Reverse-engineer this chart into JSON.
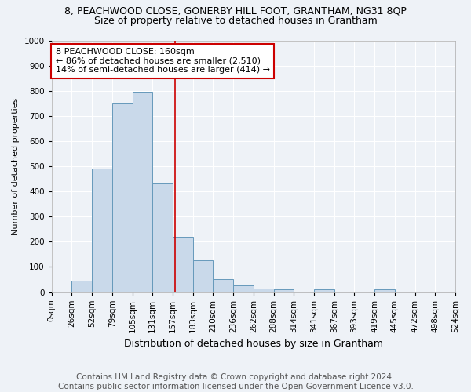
{
  "title1": "8, PEACHWOOD CLOSE, GONERBY HILL FOOT, GRANTHAM, NG31 8QP",
  "title2": "Size of property relative to detached houses in Grantham",
  "xlabel": "Distribution of detached houses by size in Grantham",
  "ylabel": "Number of detached properties",
  "footer1": "Contains HM Land Registry data © Crown copyright and database right 2024.",
  "footer2": "Contains public sector information licensed under the Open Government Licence v3.0.",
  "bin_labels": [
    "0sqm",
    "26sqm",
    "52sqm",
    "79sqm",
    "105sqm",
    "131sqm",
    "157sqm",
    "183sqm",
    "210sqm",
    "236sqm",
    "262sqm",
    "288sqm",
    "314sqm",
    "341sqm",
    "367sqm",
    "393sqm",
    "419sqm",
    "445sqm",
    "472sqm",
    "498sqm",
    "524sqm"
  ],
  "bar_values": [
    0,
    45,
    490,
    750,
    795,
    430,
    220,
    125,
    52,
    27,
    14,
    10,
    0,
    10,
    0,
    0,
    10,
    0,
    0,
    0
  ],
  "bar_color": "#c9d9ea",
  "bar_edge_color": "#6699bb",
  "annotation_text": "8 PEACHWOOD CLOSE: 160sqm\n← 86% of detached houses are smaller (2,510)\n14% of semi-detached houses are larger (414) →",
  "annotation_box_color": "#ffffff",
  "annotation_border_color": "#cc0000",
  "vline_color": "#cc0000",
  "ylim": [
    0,
    1000
  ],
  "yticks": [
    0,
    100,
    200,
    300,
    400,
    500,
    600,
    700,
    800,
    900,
    1000
  ],
  "background_color": "#eef2f7",
  "grid_color": "#ffffff",
  "title1_fontsize": 9,
  "title2_fontsize": 9,
  "xlabel_fontsize": 9,
  "ylabel_fontsize": 8,
  "footer_fontsize": 7.5,
  "tick_fontsize": 7.5
}
